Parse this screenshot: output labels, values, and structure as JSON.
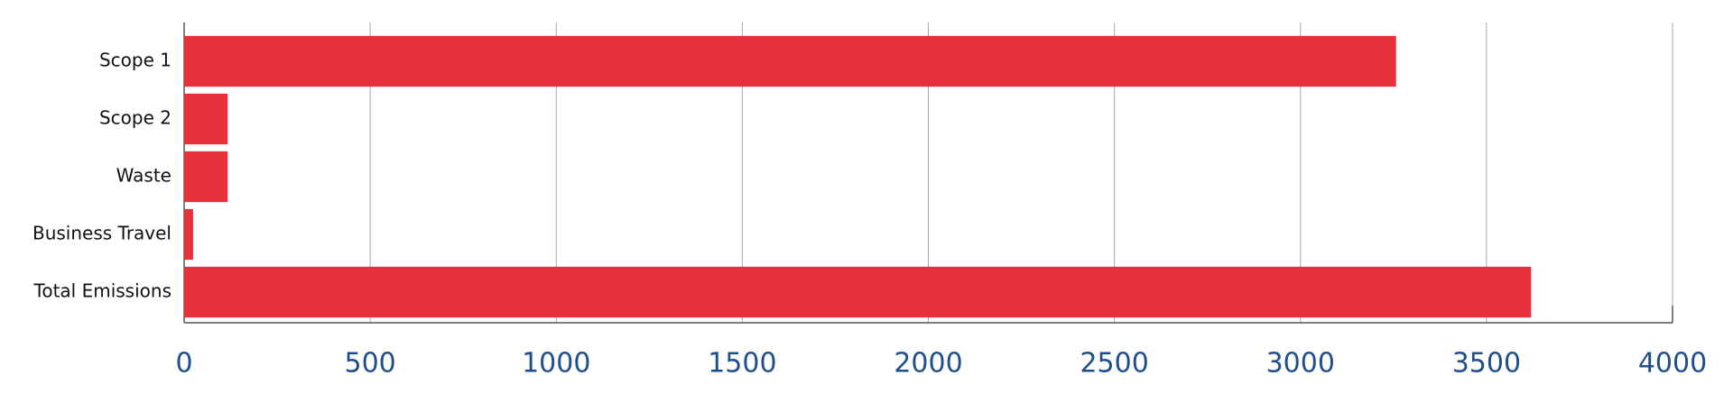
{
  "chart_data": {
    "type": "hbar",
    "categories": [
      "Scope 1",
      "Scope 2",
      "Waste",
      "Business Travel",
      "Total Emissions"
    ],
    "values": [
      3257,
      117,
      117,
      24,
      3620
    ],
    "color": "#e8303a",
    "xlim": [
      0,
      4000
    ],
    "xticks": [
      0,
      500,
      1000,
      1500,
      2000,
      2500,
      3000,
      3500,
      4000
    ],
    "grid": true
  }
}
